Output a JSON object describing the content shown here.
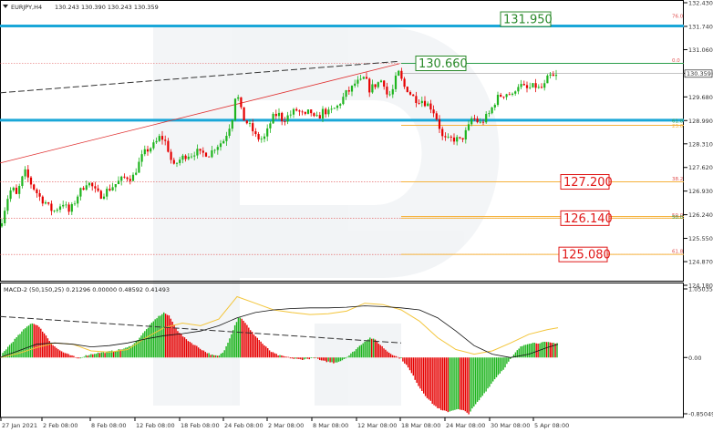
{
  "header": {
    "symbol_tf": "EURJPY,H4",
    "ohlc": "130.243 130.390 130.243 130.359",
    "macd_label": "MACD-2 (50,150,25) 0.21296 0.00000 0.48592 0.41493"
  },
  "chart_data": [
    {
      "type": "candlestick",
      "symbol": "EURJPY",
      "timeframe": "H4",
      "ylim": [
        124.18,
        132.43
      ],
      "y_ticks": [
        "132.430",
        "131.740",
        "131.060",
        "130.370",
        "129.680",
        "128.990",
        "128.310",
        "127.620",
        "126.930",
        "126.240",
        "125.550",
        "124.870",
        "124.180"
      ],
      "x_ticks": [
        "27 Jan 2021",
        "2 Feb 08:00",
        "8 Feb 08:00",
        "12 Feb 08:00",
        "18 Feb 08:00",
        "24 Feb 08:00",
        "2 Mar 08:00",
        "8 Mar 08:00",
        "12 Mar 08:00",
        "18 Mar 08:00",
        "24 Mar 08:00",
        "30 Mar 08:00",
        "5 Apr 08:00"
      ],
      "current_price": "130.359",
      "close_path": [
        [
          0,
          125.9
        ],
        [
          5,
          126.4
        ],
        [
          10,
          126.9
        ],
        [
          14,
          127.0
        ],
        [
          18,
          126.8
        ],
        [
          22,
          127.1
        ],
        [
          27,
          127.5
        ],
        [
          31,
          127.3
        ],
        [
          35,
          127.1
        ],
        [
          40,
          126.9
        ],
        [
          45,
          126.7
        ],
        [
          50,
          126.6
        ],
        [
          55,
          126.4
        ],
        [
          60,
          126.35
        ],
        [
          65,
          126.5
        ],
        [
          70,
          126.6
        ],
        [
          75,
          126.3
        ],
        [
          80,
          126.5
        ],
        [
          85,
          126.8
        ],
        [
          90,
          127.0
        ],
        [
          95,
          127.2
        ],
        [
          100,
          127.1
        ],
        [
          105,
          126.9
        ],
        [
          110,
          126.8
        ],
        [
          115,
          126.9
        ],
        [
          120,
          127.0
        ],
        [
          125,
          127.1
        ],
        [
          130,
          127.2
        ],
        [
          135,
          127.3
        ],
        [
          140,
          127.35
        ],
        [
          145,
          127.3
        ],
        [
          150,
          127.6
        ],
        [
          155,
          127.9
        ],
        [
          160,
          128.1
        ],
        [
          165,
          128.2
        ],
        [
          170,
          128.3
        ],
        [
          175,
          128.5
        ],
        [
          180,
          128.45
        ],
        [
          185,
          128.1
        ],
        [
          190,
          127.6
        ],
        [
          195,
          127.8
        ],
        [
          200,
          127.9
        ],
        [
          205,
          128.0
        ],
        [
          210,
          128.0
        ],
        [
          215,
          128.1
        ],
        [
          220,
          128.0
        ],
        [
          225,
          128.05
        ],
        [
          230,
          128.0
        ],
        [
          235,
          128.2
        ],
        [
          240,
          128.3
        ],
        [
          245,
          128.4
        ],
        [
          250,
          128.7
        ],
        [
          255,
          129.1
        ],
        [
          259,
          129.9
        ],
        [
          264,
          129.3
        ],
        [
          268,
          129.0
        ],
        [
          272,
          128.9
        ],
        [
          277,
          128.7
        ],
        [
          281,
          128.5
        ],
        [
          286,
          128.45
        ],
        [
          291,
          128.5
        ],
        [
          296,
          128.9
        ],
        [
          300,
          129.1
        ],
        [
          305,
          129.2
        ],
        [
          310,
          129.0
        ],
        [
          315,
          129.1
        ],
        [
          320,
          129.2
        ],
        [
          325,
          129.3
        ],
        [
          330,
          129.2
        ],
        [
          335,
          129.1
        ],
        [
          340,
          129.3
        ],
        [
          345,
          129.0
        ],
        [
          350,
          129.1
        ],
        [
          355,
          129.3
        ],
        [
          360,
          129.2
        ],
        [
          365,
          129.3
        ],
        [
          370,
          129.4
        ],
        [
          375,
          129.6
        ],
        [
          380,
          129.8
        ],
        [
          385,
          129.9
        ],
        [
          390,
          130.1
        ],
        [
          395,
          130.1
        ],
        [
          400,
          130.25
        ],
        [
          405,
          129.9
        ],
        [
          410,
          130.0
        ],
        [
          415,
          130.1
        ],
        [
          420,
          130.2
        ],
        [
          425,
          129.7
        ],
        [
          430,
          129.8
        ],
        [
          435,
          130.3
        ],
        [
          438,
          130.4
        ],
        [
          442,
          130.0
        ],
        [
          447,
          129.9
        ],
        [
          452,
          129.7
        ],
        [
          457,
          129.6
        ],
        [
          462,
          129.6
        ],
        [
          467,
          129.5
        ],
        [
          472,
          129.4
        ],
        [
          477,
          129.2
        ],
        [
          481,
          128.9
        ],
        [
          485,
          128.5
        ],
        [
          490,
          128.4
        ],
        [
          495,
          128.45
        ],
        [
          500,
          128.45
        ],
        [
          505,
          128.4
        ],
        [
          510,
          128.6
        ],
        [
          514,
          128.8
        ],
        [
          518,
          129.1
        ],
        [
          522,
          129.0
        ],
        [
          527,
          128.9
        ],
        [
          532,
          129.05
        ],
        [
          537,
          129.2
        ],
        [
          542,
          129.5
        ],
        [
          547,
          129.7
        ],
        [
          552,
          129.75
        ],
        [
          557,
          129.8
        ],
        [
          562,
          129.7
        ],
        [
          567,
          130.05
        ],
        [
          572,
          130.0
        ],
        [
          577,
          129.9
        ],
        [
          582,
          129.95
        ],
        [
          587,
          130.0
        ],
        [
          592,
          129.9
        ],
        [
          597,
          130.0
        ],
        [
          602,
          130.3
        ],
        [
          607,
          130.25
        ],
        [
          612,
          130.3
        ]
      ]
    },
    {
      "type": "bar",
      "name": "MACD-2 (50,150,25)",
      "ylim": [
        -0.85049,
        1.05035
      ],
      "y_ticks": [
        "1.05035",
        "0.00",
        "-0.85049"
      ],
      "histogram_path": [
        [
          2,
          0.05
        ],
        [
          10,
          0.18
        ],
        [
          18,
          0.3
        ],
        [
          26,
          0.42
        ],
        [
          34,
          0.52
        ],
        [
          40,
          0.5
        ],
        [
          48,
          0.38
        ],
        [
          56,
          0.22
        ],
        [
          64,
          0.12
        ],
        [
          72,
          0.06
        ],
        [
          80,
          0.02
        ],
        [
          86,
          -0.02
        ],
        [
          92,
          0.02
        ],
        [
          100,
          0.05
        ],
        [
          108,
          0.07
        ],
        [
          116,
          0.08
        ],
        [
          124,
          0.1
        ],
        [
          132,
          0.12
        ],
        [
          140,
          0.15
        ],
        [
          148,
          0.22
        ],
        [
          156,
          0.35
        ],
        [
          164,
          0.48
        ],
        [
          172,
          0.6
        ],
        [
          180,
          0.68
        ],
        [
          186,
          0.62
        ],
        [
          194,
          0.42
        ],
        [
          202,
          0.3
        ],
        [
          210,
          0.22
        ],
        [
          218,
          0.15
        ],
        [
          226,
          0.08
        ],
        [
          234,
          0.03
        ],
        [
          240,
          0.02
        ],
        [
          246,
          0.1
        ],
        [
          252,
          0.3
        ],
        [
          258,
          0.5
        ],
        [
          262,
          0.62
        ],
        [
          268,
          0.55
        ],
        [
          274,
          0.42
        ],
        [
          282,
          0.3
        ],
        [
          290,
          0.18
        ],
        [
          298,
          0.08
        ],
        [
          306,
          0.03
        ],
        [
          314,
          0.01
        ],
        [
          322,
          -0.02
        ],
        [
          330,
          -0.03
        ],
        [
          338,
          -0.02
        ],
        [
          346,
          0.0
        ],
        [
          352,
          -0.05
        ],
        [
          358,
          -0.06
        ],
        [
          366,
          -0.08
        ],
        [
          374,
          -0.05
        ],
        [
          382,
          0.02
        ],
        [
          390,
          0.12
        ],
        [
          398,
          0.22
        ],
        [
          406,
          0.3
        ],
        [
          412,
          0.26
        ],
        [
          418,
          0.18
        ],
        [
          426,
          0.08
        ],
        [
          434,
          0.02
        ],
        [
          440,
          -0.02
        ],
        [
          446,
          -0.12
        ],
        [
          452,
          -0.25
        ],
        [
          460,
          -0.45
        ],
        [
          468,
          -0.6
        ],
        [
          476,
          -0.72
        ],
        [
          484,
          -0.8
        ],
        [
          492,
          -0.82
        ],
        [
          500,
          -0.78
        ],
        [
          508,
          -0.8
        ],
        [
          514,
          -0.85
        ],
        [
          520,
          -0.74
        ],
        [
          528,
          -0.6
        ],
        [
          536,
          -0.45
        ],
        [
          544,
          -0.3
        ],
        [
          552,
          -0.18
        ],
        [
          558,
          -0.06
        ],
        [
          564,
          0.05
        ],
        [
          570,
          0.15
        ],
        [
          576,
          0.2
        ],
        [
          582,
          0.22
        ],
        [
          590,
          0.22
        ],
        [
          598,
          0.23
        ],
        [
          606,
          0.22
        ],
        [
          612,
          0.22
        ]
      ],
      "signal_path": [
        [
          0,
          0.0
        ],
        [
          20,
          0.1
        ],
        [
          40,
          0.2
        ],
        [
          60,
          0.22
        ],
        [
          80,
          0.2
        ],
        [
          100,
          0.16
        ],
        [
          120,
          0.18
        ],
        [
          140,
          0.22
        ],
        [
          160,
          0.28
        ],
        [
          180,
          0.33
        ],
        [
          200,
          0.36
        ],
        [
          220,
          0.4
        ],
        [
          240,
          0.48
        ],
        [
          260,
          0.6
        ],
        [
          280,
          0.68
        ],
        [
          300,
          0.72
        ],
        [
          320,
          0.74
        ],
        [
          340,
          0.75
        ],
        [
          360,
          0.75
        ],
        [
          380,
          0.76
        ],
        [
          400,
          0.78
        ],
        [
          420,
          0.77
        ],
        [
          440,
          0.75
        ],
        [
          460,
          0.72
        ],
        [
          480,
          0.6
        ],
        [
          500,
          0.4
        ],
        [
          520,
          0.18
        ],
        [
          540,
          0.05
        ],
        [
          560,
          0.0
        ],
        [
          580,
          0.05
        ],
        [
          600,
          0.15
        ],
        [
          612,
          0.2
        ]
      ],
      "signal2_path": [
        [
          0,
          0.0
        ],
        [
          20,
          0.06
        ],
        [
          40,
          0.15
        ],
        [
          60,
          0.22
        ],
        [
          80,
          0.2
        ],
        [
          100,
          0.1
        ],
        [
          120,
          0.08
        ],
        [
          140,
          0.12
        ],
        [
          160,
          0.3
        ],
        [
          180,
          0.45
        ],
        [
          200,
          0.52
        ],
        [
          220,
          0.48
        ],
        [
          240,
          0.58
        ],
        [
          260,
          0.92
        ],
        [
          280,
          0.82
        ],
        [
          300,
          0.72
        ],
        [
          320,
          0.68
        ],
        [
          340,
          0.65
        ],
        [
          360,
          0.66
        ],
        [
          380,
          0.7
        ],
        [
          400,
          0.82
        ],
        [
          420,
          0.8
        ],
        [
          440,
          0.72
        ],
        [
          460,
          0.55
        ],
        [
          480,
          0.3
        ],
        [
          500,
          0.12
        ],
        [
          520,
          0.05
        ],
        [
          540,
          0.1
        ],
        [
          560,
          0.22
        ],
        [
          580,
          0.35
        ],
        [
          600,
          0.42
        ],
        [
          612,
          0.45
        ]
      ]
    }
  ],
  "annotations": {
    "levels": [
      {
        "label": "131.950",
        "fib": "76.0"
      },
      {
        "label": "130.660",
        "fib": "0.0"
      },
      {
        "label": "127.200",
        "fib": "38.2"
      },
      {
        "label": "126.140",
        "fib": "50.0"
      },
      {
        "label": "125.080",
        "fib": "61.8"
      }
    ],
    "extra_fib_labels": [
      "61.8",
      "23.6",
      "50.0"
    ]
  },
  "colors": {
    "bull": "#1eb41e",
    "bear": "#e60000",
    "cyan": "#1aa7d8",
    "fib_orange": "#f5b23c",
    "green_line": "#2a9d4a",
    "red_dotted": "#e05050",
    "label_green": "#2a8a2a",
    "label_red": "#e01818",
    "signal_black": "#111111",
    "signal_yellow": "#f3c53a"
  }
}
